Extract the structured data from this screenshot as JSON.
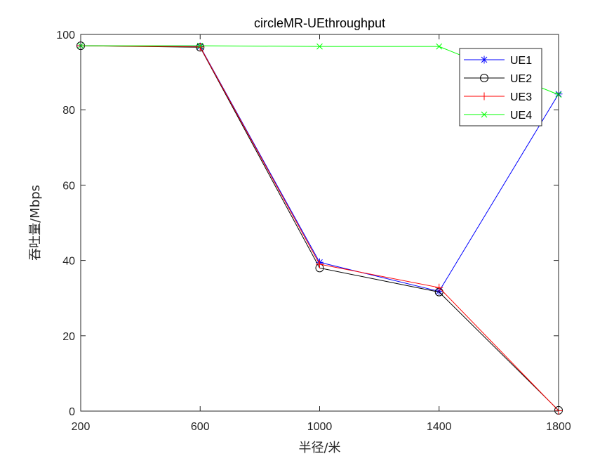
{
  "chart_data": {
    "type": "line",
    "title": "circleMR-UEthroughput",
    "xlabel": "半径/米",
    "ylabel": "吞吐量/Mbps",
    "x": [
      200,
      600,
      1000,
      1400,
      1800
    ],
    "xticks": [
      "200",
      "600",
      "1000",
      "1400",
      "1800"
    ],
    "yticks": [
      "0",
      "20",
      "40",
      "60",
      "80",
      "100"
    ],
    "xlim": [
      200,
      1800
    ],
    "ylim": [
      0,
      100
    ],
    "grid": false,
    "legend_position": "top-right",
    "series": [
      {
        "name": "UE1",
        "color": "#0000ff",
        "marker": "asterisk",
        "values": [
          97.0,
          96.8,
          39.5,
          31.8,
          84.2
        ]
      },
      {
        "name": "UE2",
        "color": "#000000",
        "marker": "circle",
        "values": [
          97.0,
          96.6,
          38.0,
          31.6,
          0.2
        ]
      },
      {
        "name": "UE3",
        "color": "#ff0000",
        "marker": "plus",
        "values": [
          97.0,
          96.7,
          39.0,
          32.8,
          0.1
        ]
      },
      {
        "name": "UE4",
        "color": "#00ff00",
        "marker": "x",
        "values": [
          97.0,
          97.0,
          96.8,
          96.8,
          84.0
        ]
      }
    ]
  }
}
